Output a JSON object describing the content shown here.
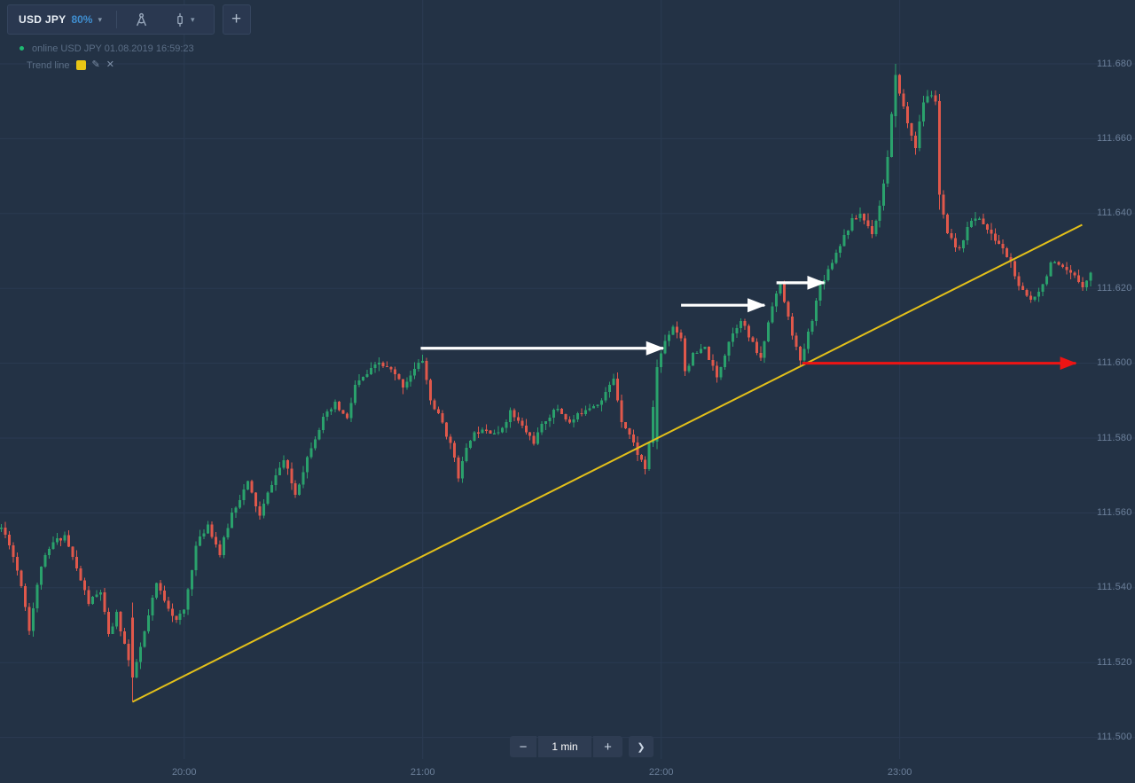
{
  "toolbar": {
    "asset": "USD JPY",
    "payout": "80%",
    "add_chart": "+"
  },
  "icons": {
    "dropdown": "▾",
    "edit": "✎",
    "close": "✕",
    "minus": "−",
    "plus": "+",
    "next": "❯"
  },
  "legend": {
    "status_line": "online USD JPY 01.08.2019 16:59:23",
    "indicator_name": "Trend line",
    "indicator_color": "#e8c515"
  },
  "timeframe": {
    "value": "1 min"
  },
  "chart_data": {
    "type": "candlestick",
    "symbol": "USD JPY",
    "interval": "1 min",
    "start_time": "19:14",
    "minutes": 275,
    "y_axis": {
      "min": 111.5,
      "max": 111.68,
      "step": 0.02,
      "labels": [
        "111.680",
        "111.660",
        "111.640",
        "111.620",
        "111.600",
        "111.580",
        "111.560",
        "111.540",
        "111.520",
        "111.500"
      ],
      "values": [
        111.68,
        111.66,
        111.64,
        111.62,
        111.6,
        111.58,
        111.56,
        111.54,
        111.52,
        111.5
      ]
    },
    "x_axis": {
      "labels": [
        "20:00",
        "21:00",
        "22:00",
        "23:00"
      ],
      "positions_min": [
        46,
        106,
        166,
        226
      ]
    },
    "price_path": [
      [
        0,
        111.556
      ],
      [
        2,
        111.552
      ],
      [
        5,
        111.541
      ],
      [
        7,
        111.529
      ],
      [
        10,
        111.546
      ],
      [
        13,
        111.552
      ],
      [
        16,
        111.554
      ],
      [
        19,
        111.545
      ],
      [
        22,
        111.536
      ],
      [
        25,
        111.539
      ],
      [
        27,
        111.527
      ],
      [
        29,
        111.533
      ],
      [
        31,
        111.525
      ],
      [
        33,
        111.516
      ],
      [
        36,
        111.528
      ],
      [
        39,
        111.541
      ],
      [
        41,
        111.537
      ],
      [
        44,
        111.531
      ],
      [
        46,
        111.534
      ],
      [
        49,
        111.551
      ],
      [
        52,
        111.557
      ],
      [
        55,
        111.549
      ],
      [
        58,
        111.56
      ],
      [
        62,
        111.568
      ],
      [
        65,
        111.559
      ],
      [
        68,
        111.568
      ],
      [
        71,
        111.574
      ],
      [
        74,
        111.565
      ],
      [
        78,
        111.578
      ],
      [
        81,
        111.585
      ],
      [
        84,
        111.589
      ],
      [
        87,
        111.585
      ],
      [
        89,
        111.594
      ],
      [
        92,
        111.597
      ],
      [
        95,
        111.6
      ],
      [
        98,
        111.598
      ],
      [
        101,
        111.594
      ],
      [
        103,
        111.597
      ],
      [
        106,
        111.601
      ],
      [
        108,
        111.59
      ],
      [
        111,
        111.584
      ],
      [
        114,
        111.575
      ],
      [
        115,
        111.57
      ],
      [
        118,
        111.58
      ],
      [
        121,
        111.583
      ],
      [
        125,
        111.581
      ],
      [
        128,
        111.587
      ],
      [
        131,
        111.583
      ],
      [
        134,
        111.579
      ],
      [
        137,
        111.585
      ],
      [
        140,
        111.588
      ],
      [
        143,
        111.584
      ],
      [
        147,
        111.588
      ],
      [
        151,
        111.59
      ],
      [
        154,
        111.596
      ],
      [
        156,
        111.585
      ],
      [
        158,
        111.581
      ],
      [
        160,
        111.576
      ],
      [
        162,
        111.572
      ],
      [
        163,
        111.578
      ],
      [
        165,
        111.599
      ],
      [
        167,
        111.606
      ],
      [
        169,
        111.61
      ],
      [
        171,
        111.607
      ],
      [
        172,
        111.598
      ],
      [
        174,
        111.602
      ],
      [
        177,
        111.604
      ],
      [
        180,
        111.596
      ],
      [
        183,
        111.606
      ],
      [
        186,
        111.612
      ],
      [
        188,
        111.607
      ],
      [
        191,
        111.601
      ],
      [
        194,
        111.616
      ],
      [
        196,
        111.621
      ],
      [
        198,
        111.612
      ],
      [
        200,
        111.604
      ],
      [
        201,
        111.6
      ],
      [
        204,
        111.612
      ],
      [
        206,
        111.621
      ],
      [
        208,
        111.625
      ],
      [
        211,
        111.632
      ],
      [
        214,
        111.638
      ],
      [
        216,
        111.64
      ],
      [
        219,
        111.635
      ],
      [
        221,
        111.642
      ],
      [
        223,
        111.655
      ],
      [
        225,
        111.677
      ],
      [
        228,
        111.664
      ],
      [
        230,
        111.658
      ],
      [
        232,
        111.67
      ],
      [
        234,
        111.672
      ],
      [
        235,
        111.67
      ],
      [
        236,
        111.645
      ],
      [
        238,
        111.634
      ],
      [
        241,
        111.63
      ],
      [
        243,
        111.637
      ],
      [
        246,
        111.639
      ],
      [
        249,
        111.634
      ],
      [
        251,
        111.632
      ],
      [
        254,
        111.627
      ],
      [
        256,
        111.62
      ],
      [
        259,
        111.617
      ],
      [
        262,
        111.621
      ],
      [
        264,
        111.627
      ],
      [
        267,
        111.625
      ],
      [
        270,
        111.623
      ],
      [
        272,
        111.621
      ],
      [
        274,
        111.624
      ]
    ],
    "overrides": {
      "33": {
        "o": 111.532,
        "c": 111.516,
        "h": 111.536,
        "l": 111.5095
      },
      "165": {
        "o": 111.579,
        "c": 111.599,
        "h": 111.601,
        "l": 111.577
      },
      "225": {
        "o": 111.666,
        "c": 111.677,
        "h": 111.68,
        "l": 111.663
      },
      "236": {
        "o": 111.67,
        "c": 111.645,
        "h": 111.672,
        "l": 111.641
      }
    },
    "trend_line": {
      "color": "#e3c01a",
      "from_min": 33,
      "from_price": 111.5095,
      "to_min": 271.9,
      "to_price": 111.637
    },
    "annotations": {
      "white_arrows": [
        {
          "from_min": 105.5,
          "to_min": 166.5,
          "price": 111.604
        },
        {
          "from_min": 171.0,
          "to_min": 192.0,
          "price": 111.6155
        },
        {
          "from_min": 195.0,
          "to_min": 207.0,
          "price": 111.6215
        }
      ],
      "red_arrow": {
        "from_min": 201.5,
        "to_min": 270.3,
        "price": 111.6,
        "color": "#ee1414"
      }
    },
    "colors": {
      "up": "#2aa16c",
      "down": "#e0584b",
      "grid": "#2b3b52",
      "background": "#233245",
      "axis_label": "#6b7f99",
      "white_arrow": "#ffffff"
    }
  }
}
